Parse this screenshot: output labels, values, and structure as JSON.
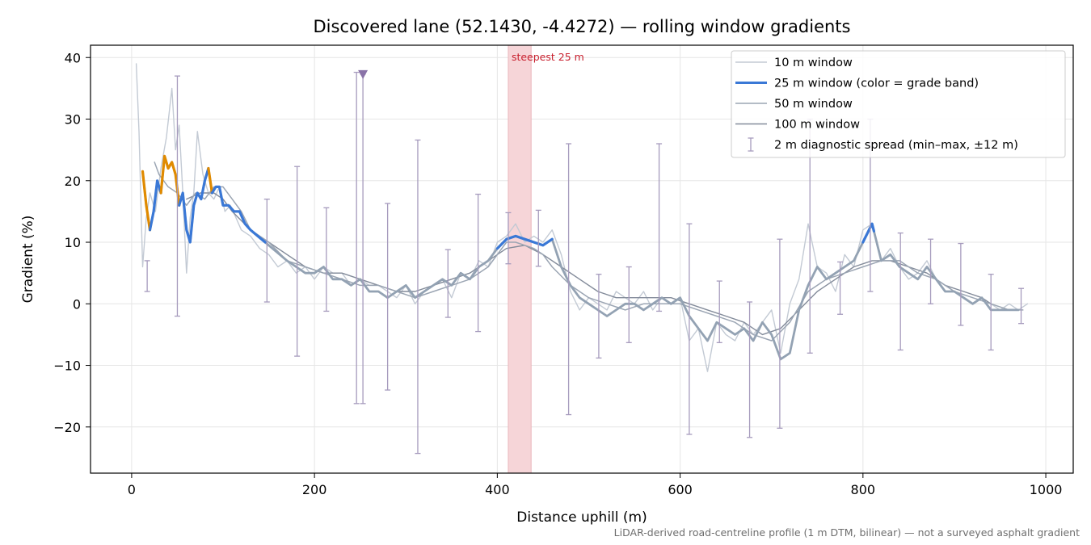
{
  "chart_data": {
    "type": "line",
    "title": "Discovered lane (52.1430, -4.4272) — rolling window gradients",
    "xlabel": "Distance uphill (m)",
    "ylabel": "Gradient (%)",
    "xlim": [
      -45,
      1030
    ],
    "ylim": [
      -27.5,
      42
    ],
    "xticks": [
      0,
      200,
      400,
      600,
      800,
      1000
    ],
    "yticks": [
      -20,
      -10,
      0,
      10,
      20,
      30,
      40
    ],
    "ytick_labels": [
      "−20",
      "−10",
      "0",
      "10",
      "20",
      "30",
      "40"
    ],
    "grid": true,
    "legend_placement": "top-right",
    "footnote": "LiDAR-derived road-centreline profile (1 m DTM, bilinear) — not a surveyed asphalt gradient",
    "highlight": {
      "label": "steepest 25 m",
      "x_start": 412,
      "x_end": 437,
      "color": "#f6d5d8"
    },
    "marker": {
      "x": 253,
      "y": 37.3,
      "shape": "triangle-down",
      "color": "#8a73a8"
    },
    "colors": {
      "w10": "#c3cad4",
      "w25_base": "#93a2b3",
      "w25_band_low": "#3a78d6",
      "w25_band_high": "#e08a00",
      "w50": "#9ba5b3",
      "w100": "#838b9a",
      "spread": "#a69bbd"
    },
    "series": [
      {
        "name": "10 m window",
        "x": [
          5,
          8,
          12,
          16,
          20,
          26,
          32,
          38,
          44,
          48,
          52,
          56,
          60,
          64,
          68,
          72,
          78,
          84,
          90,
          96,
          102,
          108,
          114,
          120,
          130,
          140,
          150,
          160,
          170,
          180,
          190,
          200,
          210,
          220,
          230,
          240,
          250,
          260,
          270,
          280,
          290,
          300,
          310,
          320,
          330,
          340,
          350,
          360,
          370,
          380,
          390,
          400,
          410,
          420,
          430,
          440,
          450,
          460,
          470,
          480,
          490,
          500,
          510,
          520,
          530,
          540,
          550,
          560,
          570,
          580,
          590,
          600,
          610,
          620,
          630,
          640,
          650,
          660,
          670,
          680,
          690,
          700,
          710,
          720,
          730,
          740,
          750,
          760,
          770,
          780,
          790,
          800,
          810,
          820,
          830,
          840,
          850,
          860,
          870,
          880,
          890,
          900,
          910,
          920,
          930,
          940,
          950,
          960,
          970,
          980
        ],
        "y": [
          39,
          28,
          6,
          14,
          18,
          15,
          22,
          27,
          35,
          25,
          29,
          18,
          5,
          14,
          18,
          28,
          21,
          18,
          17,
          19,
          15,
          16,
          14,
          12,
          11,
          9,
          8,
          6,
          7,
          5,
          6,
          4,
          6,
          5,
          5,
          3,
          4,
          3,
          3,
          2,
          1,
          3,
          0,
          2,
          3,
          4,
          1,
          5,
          4,
          7,
          6,
          10,
          11,
          13,
          10,
          11,
          10,
          12,
          8,
          2,
          -1,
          1,
          0,
          -1,
          2,
          1,
          0,
          2,
          -1,
          1,
          0,
          1,
          -6,
          -4,
          -11,
          -3,
          -5,
          -6,
          -3,
          -5,
          -3,
          -1,
          -8,
          0,
          4,
          13,
          6,
          5,
          2,
          8,
          6,
          12,
          13,
          7,
          9,
          6,
          4,
          5,
          7,
          4,
          3,
          2,
          1,
          0,
          1,
          0,
          -1,
          0,
          -1,
          0
        ]
      },
      {
        "name": "25 m window (color = grade band)",
        "x": [
          12,
          16,
          20,
          24,
          28,
          32,
          36,
          40,
          44,
          48,
          52,
          56,
          60,
          64,
          68,
          72,
          76,
          80,
          84,
          88,
          92,
          96,
          100,
          106,
          112,
          118,
          124,
          130,
          138,
          146,
          154,
          162,
          170,
          180,
          190,
          200,
          210,
          220,
          230,
          240,
          250,
          260,
          270,
          280,
          290,
          300,
          310,
          320,
          330,
          340,
          350,
          360,
          370,
          380,
          390,
          400,
          410,
          420,
          430,
          440,
          450,
          460,
          470,
          480,
          490,
          500,
          510,
          520,
          530,
          540,
          550,
          560,
          570,
          580,
          590,
          600,
          610,
          620,
          630,
          640,
          650,
          660,
          670,
          680,
          690,
          700,
          710,
          720,
          730,
          740,
          750,
          760,
          770,
          780,
          790,
          800,
          810,
          820,
          830,
          840,
          850,
          860,
          870,
          880,
          890,
          900,
          910,
          920,
          930,
          940,
          950,
          960,
          970
        ],
        "y": [
          21.5,
          16,
          12,
          15,
          20,
          18,
          24,
          22,
          23,
          21,
          16,
          18,
          12,
          10,
          16,
          18,
          17,
          20,
          22,
          18,
          19,
          19,
          16,
          16,
          15,
          15,
          13,
          12,
          11,
          10,
          9,
          8,
          7,
          6,
          5,
          5,
          6,
          4,
          4,
          3,
          4,
          2,
          2,
          1,
          2,
          3,
          1,
          2,
          3,
          4,
          3,
          5,
          4,
          6,
          7,
          9,
          10.5,
          11,
          10.5,
          10,
          9.5,
          10.5,
          6,
          3,
          1,
          0,
          -1,
          -2,
          -1,
          0,
          0,
          -1,
          0,
          1,
          0,
          1,
          -2,
          -4,
          -6,
          -3,
          -4,
          -5,
          -4,
          -6,
          -3,
          -5,
          -9,
          -8,
          -1,
          3,
          6,
          4,
          5,
          6,
          7,
          10,
          13,
          7,
          8,
          6,
          5,
          4,
          6,
          4,
          2,
          2,
          1,
          0,
          1,
          -1,
          -1,
          -1,
          -1
        ],
        "band_segments": [
          {
            "band": "high",
            "x_from": 12,
            "x_to": 20
          },
          {
            "band": "low",
            "x_from": 20,
            "x_to": 32
          },
          {
            "band": "high",
            "x_from": 32,
            "x_to": 52
          },
          {
            "band": "low",
            "x_from": 52,
            "x_to": 84
          },
          {
            "band": "high",
            "x_from": 84,
            "x_to": 88
          },
          {
            "band": "low",
            "x_from": 88,
            "x_to": 146
          },
          {
            "band": "low",
            "x_from": 400,
            "x_to": 460
          },
          {
            "band": "low",
            "x_from": 800,
            "x_to": 812
          }
        ]
      },
      {
        "name": "50 m window",
        "x": [
          25,
          30,
          40,
          50,
          60,
          70,
          80,
          90,
          100,
          110,
          120,
          130,
          140,
          150,
          170,
          190,
          210,
          230,
          250,
          270,
          290,
          310,
          330,
          350,
          370,
          390,
          410,
          420,
          430,
          440,
          450,
          460,
          480,
          500,
          520,
          540,
          560,
          580,
          600,
          620,
          640,
          660,
          680,
          700,
          720,
          740,
          760,
          780,
          800,
          820,
          840,
          860,
          880,
          900,
          920,
          940,
          960,
          975
        ],
        "y": [
          23,
          21,
          19,
          18,
          16,
          18,
          17,
          19,
          19,
          17,
          15,
          12,
          11,
          10,
          7,
          6,
          5,
          4,
          3,
          3,
          2,
          1,
          2,
          3,
          4,
          6,
          10,
          10,
          9.5,
          9,
          8,
          6,
          3,
          1,
          0,
          -1,
          0,
          0,
          0,
          -1,
          -2,
          -3,
          -5,
          -6,
          -3,
          2,
          4,
          5,
          6,
          7,
          7,
          5,
          4,
          2,
          1,
          0,
          -1,
          -1
        ]
      },
      {
        "name": "100 m window",
        "x": [
          60,
          75,
          90,
          100,
          110,
          130,
          150,
          170,
          190,
          210,
          230,
          250,
          270,
          290,
          310,
          330,
          350,
          370,
          390,
          410,
          430,
          450,
          470,
          490,
          510,
          530,
          550,
          570,
          590,
          610,
          630,
          650,
          670,
          690,
          710,
          730,
          750,
          770,
          790,
          810,
          830,
          850,
          870,
          890,
          910,
          930,
          940
        ],
        "y": [
          17,
          18,
          18,
          17,
          15,
          12,
          10,
          8,
          6,
          5,
          5,
          4,
          3,
          2,
          2,
          3,
          4,
          5,
          7,
          9,
          9.5,
          8,
          6,
          4,
          2,
          1,
          1,
          1,
          1,
          0,
          -1,
          -2,
          -3,
          -5,
          -4,
          -1,
          2,
          4,
          6,
          7,
          7,
          6,
          5,
          3,
          2,
          1,
          0
        ]
      }
    ],
    "spread": {
      "name": "2 m diagnostic spread (min–max, ±12 m)",
      "items": [
        {
          "x": 17,
          "min": 2,
          "max": 7
        },
        {
          "x": 50,
          "min": -2,
          "max": 37
        },
        {
          "x": 148,
          "min": 0.3,
          "max": 17
        },
        {
          "x": 181,
          "min": -8.5,
          "max": 22.3
        },
        {
          "x": 213,
          "min": -1.2,
          "max": 15.6
        },
        {
          "x": 246,
          "min": -16.2,
          "max": 37.6
        },
        {
          "x": 253,
          "min": -16.2,
          "max": 37.3
        },
        {
          "x": 280,
          "min": -14,
          "max": 16.3
        },
        {
          "x": 313,
          "min": -24.3,
          "max": 26.6
        },
        {
          "x": 346,
          "min": -2.2,
          "max": 8.8
        },
        {
          "x": 379,
          "min": -4.5,
          "max": 17.8
        },
        {
          "x": 412,
          "min": 6.5,
          "max": 14.8
        },
        {
          "x": 445,
          "min": 6.1,
          "max": 15.2
        },
        {
          "x": 478,
          "min": -18,
          "max": 26
        },
        {
          "x": 511,
          "min": -8.8,
          "max": 4.8
        },
        {
          "x": 544,
          "min": -6.3,
          "max": 6
        },
        {
          "x": 577,
          "min": -1.2,
          "max": 26
        },
        {
          "x": 610,
          "min": -21.2,
          "max": 13
        },
        {
          "x": 643,
          "min": -6.3,
          "max": 3.7
        },
        {
          "x": 676,
          "min": -21.7,
          "max": 0.3
        },
        {
          "x": 709,
          "min": -20.2,
          "max": 10.5
        },
        {
          "x": 742,
          "min": -8,
          "max": 30
        },
        {
          "x": 775,
          "min": -1.7,
          "max": 6.8
        },
        {
          "x": 808,
          "min": 2,
          "max": 30
        },
        {
          "x": 841,
          "min": -7.5,
          "max": 11.5
        },
        {
          "x": 874,
          "min": 0,
          "max": 10.5
        },
        {
          "x": 907,
          "min": -3.5,
          "max": 9.8
        },
        {
          "x": 940,
          "min": -7.5,
          "max": 4.8
        },
        {
          "x": 973,
          "min": -3.2,
          "max": 2.5
        }
      ]
    }
  }
}
